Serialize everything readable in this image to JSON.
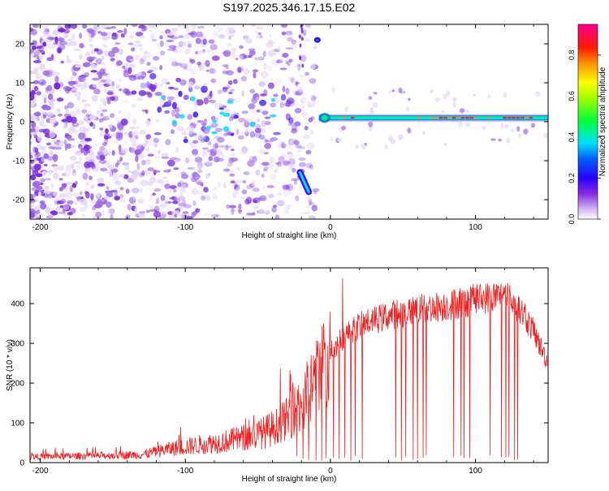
{
  "title": "S197.2025.346.17.15.E02",
  "chart_data": [
    {
      "type": "heatmap",
      "name": "spectrogram",
      "xlabel": "Height of straight line (km)",
      "ylabel": "Frequency (Hz)",
      "xlim": [
        -207,
        150
      ],
      "ylim": [
        -25,
        25
      ],
      "xticks": [
        -200,
        -100,
        0,
        100
      ],
      "xtick_labels": [
        "-200",
        "-100",
        "0",
        "100"
      ],
      "yticks": [
        -20,
        -10,
        0,
        10,
        20
      ],
      "ytick_labels": [
        "-20",
        "-10",
        "0",
        "10",
        "20"
      ],
      "colorbar": {
        "label": "Normalized spectral amplitude",
        "range": [
          0,
          0.95
        ],
        "ticks": [
          0.0,
          0.2,
          0.4,
          0.6,
          0.8
        ],
        "tick_labels": [
          "0.0",
          "0.2",
          "0.4",
          "0.6",
          "0.8"
        ],
        "colors": [
          "#e6d8f8",
          "#a06ee8",
          "#7a2be0",
          "#2a00ff",
          "#0070ff",
          "#00e0ff",
          "#00ff60",
          "#80ff00",
          "#ffff00",
          "#ff9000",
          "#ff2000",
          "#ff0090",
          "#ff0060"
        ]
      },
      "features": {
        "scatter_region_km": [
          -207,
          -10
        ],
        "carrier_start_km": -8,
        "carrier_freq_hz": 1.0,
        "hot_segments_km": [
          [
            8,
            18
          ],
          [
            60,
            110
          ],
          [
            116,
            140
          ]
        ],
        "lower_branch": {
          "km": [
            -21,
            -15
          ],
          "freq_hz": [
            -13,
            -18
          ]
        },
        "upper_blob": {
          "km": -9,
          "freq_hz": 21
        }
      }
    },
    {
      "type": "line",
      "name": "snr",
      "xlabel": "Height of straight line (km)",
      "ylabel": "SNR (10 * v/v)",
      "xlim": [
        -207,
        150
      ],
      "ylim": [
        0,
        490
      ],
      "xticks": [
        -200,
        -100,
        0,
        100
      ],
      "xtick_labels": [
        "-200",
        "-100",
        "0",
        "100"
      ],
      "yticks": [
        0,
        100,
        200,
        300,
        400
      ],
      "ytick_labels": [
        "0",
        "100",
        "200",
        "300",
        "400"
      ],
      "color": "#ee2222",
      "profile": [
        [
          -207,
          15
        ],
        [
          -160,
          17
        ],
        [
          -130,
          20
        ],
        [
          -110,
          35
        ],
        [
          -90,
          45
        ],
        [
          -70,
          55
        ],
        [
          -50,
          70
        ],
        [
          -40,
          85
        ],
        [
          -30,
          110
        ],
        [
          -20,
          150
        ],
        [
          -10,
          210
        ],
        [
          0,
          280
        ],
        [
          10,
          320
        ],
        [
          20,
          345
        ],
        [
          40,
          370
        ],
        [
          60,
          385
        ],
        [
          80,
          395
        ],
        [
          100,
          410
        ],
        [
          120,
          420
        ],
        [
          130,
          390
        ],
        [
          140,
          330
        ],
        [
          150,
          250
        ]
      ],
      "dropouts_km": [
        -23,
        -19,
        -15,
        -10,
        -6,
        -3,
        2,
        6,
        10,
        14,
        17,
        22,
        45,
        49,
        52,
        57,
        60,
        64,
        66,
        85,
        90,
        92,
        96,
        110,
        118,
        121,
        123,
        127,
        129
      ]
    }
  ]
}
